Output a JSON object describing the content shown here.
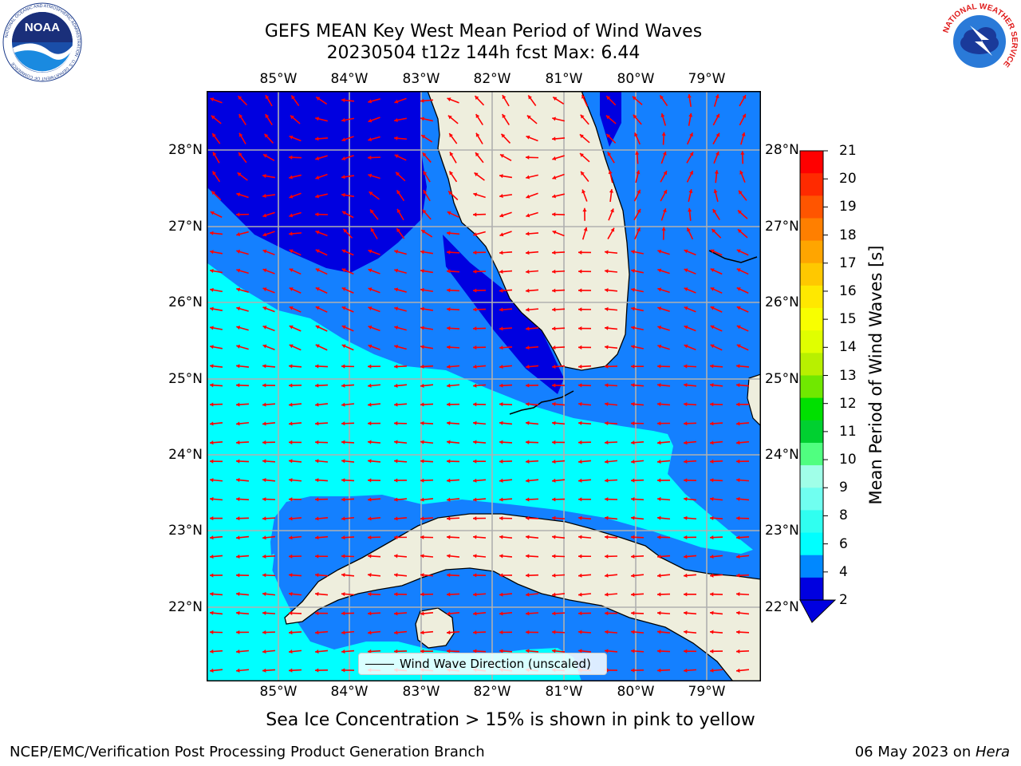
{
  "title_line1": "GEFS MEAN Key West Mean Period of Wind Waves",
  "title_line2": "20230504 t12z 144h fcst   Max: 6.44",
  "logos": {
    "noaa_text": "NOAA",
    "noaa_ring": "NATIONAL OCEANIC AND ATMOSPHERIC ADMINISTRATION · U.S. DEPARTMENT OF COMMERCE",
    "nws_ring": "NATIONAL WEATHER SERVICE"
  },
  "lon_ticks": [
    "85°W",
    "84°W",
    "83°W",
    "82°W",
    "81°W",
    "80°W",
    "79°W"
  ],
  "lat_ticks": [
    "28°N",
    "27°N",
    "26°N",
    "25°N",
    "24°N",
    "23°N",
    "22°N"
  ],
  "colorbar": {
    "label": "Mean Period of Wind Waves [s]",
    "ticks": [
      "21",
      "20",
      "19",
      "18",
      "17",
      "16",
      "15",
      "14",
      "13",
      "12",
      "11",
      "10",
      "9",
      "8",
      "6",
      "4",
      "2"
    ],
    "colors": [
      "#ff0000",
      "#ff2a00",
      "#ff5500",
      "#ff7f00",
      "#ffa500",
      "#ffc800",
      "#ffe800",
      "#f8ff00",
      "#e0ff00",
      "#b8f000",
      "#70e800",
      "#00e000",
      "#00d030",
      "#50ff80",
      "#a0ffe8",
      "#70fff0",
      "#30fff0",
      "#00ffff",
      "#0088ff",
      "#0000e0"
    ]
  },
  "legend_label": "Wind Wave Direction (unscaled)",
  "subtitle": "Sea Ice Concentration > 15% is shown in pink to yellow",
  "footer_left": "NCEP/EMC/Verification Post Processing Product Generation Branch",
  "footer_date": "06 May 2023 on ",
  "footer_host": "Hera",
  "colors": {
    "land": "#eeeedd",
    "deep_blue": "#0000e0",
    "mid_blue": "#1480ff",
    "cyan": "#00ffff",
    "arrow": "#ff0000",
    "grid": "#b0b0b0"
  }
}
